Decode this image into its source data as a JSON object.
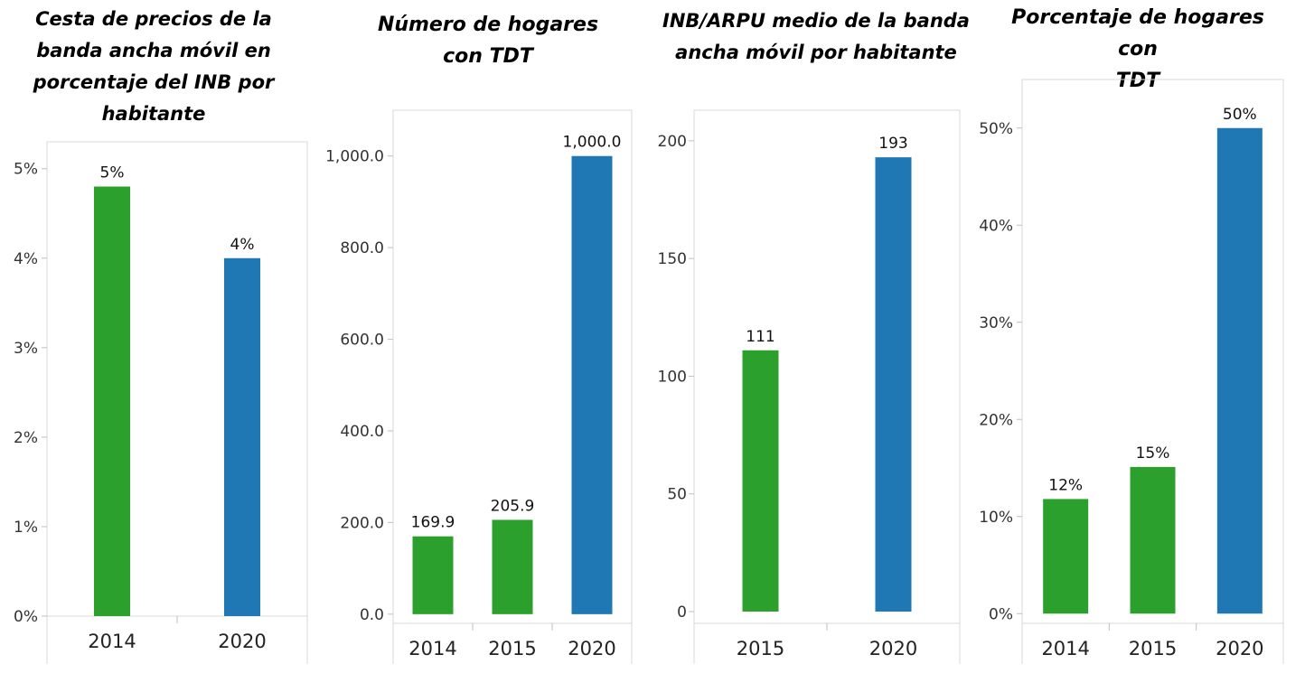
{
  "colors": {
    "green": "#2ca02c",
    "blue": "#1f77b4",
    "frame": "#d9d9d9",
    "tick": "#bfbfbf"
  },
  "chart_data": [
    {
      "type": "bar",
      "title": "Cesta de precios de la banda ancha móvil en porcentaje del INB por habitante",
      "title_lines": [
        "Cesta de precios de la",
        "banda ancha móvil en",
        "porcentaje del INB por",
        "habitante"
      ],
      "categories": [
        "2014",
        "2020"
      ],
      "values": [
        4.8,
        4.0
      ],
      "data_labels": [
        "5%",
        "4%"
      ],
      "bar_colors": [
        "green",
        "blue"
      ],
      "ylim": [
        0,
        5.3
      ],
      "yticks": [
        0,
        1,
        2,
        3,
        4,
        5
      ],
      "ytick_labels": [
        "0%",
        "1%",
        "2%",
        "3%",
        "4%",
        "5%"
      ],
      "grid": false,
      "xlabel": "",
      "ylabel": ""
    },
    {
      "type": "bar",
      "title": "Número de hogares con TDT",
      "title_lines": [
        "Número de hogares",
        "con TDT"
      ],
      "categories": [
        "2014",
        "2015",
        "2020"
      ],
      "values": [
        169.9,
        205.9,
        1000.0
      ],
      "data_labels": [
        "169.9",
        "205.9",
        "1,000.0"
      ],
      "bar_colors": [
        "green",
        "green",
        "blue"
      ],
      "ylim": [
        -20,
        1100
      ],
      "yticks": [
        0,
        200,
        400,
        600,
        800,
        1000
      ],
      "ytick_labels": [
        "0.0",
        "200.0",
        "400.0",
        "600.0",
        "800.0",
        "1,000.0"
      ],
      "grid": false,
      "xlabel": "",
      "ylabel": ""
    },
    {
      "type": "bar",
      "title": "INB/ARPU medio de la banda ancha móvil por habitante",
      "title_lines": [
        "INB/ARPU medio de la banda",
        "ancha móvil por habitante"
      ],
      "categories": [
        "2015",
        "2020"
      ],
      "values": [
        111,
        193
      ],
      "data_labels": [
        "111",
        "193"
      ],
      "bar_colors": [
        "green",
        "blue"
      ],
      "ylim": [
        -5,
        213
      ],
      "yticks": [
        0,
        50,
        100,
        150,
        200
      ],
      "ytick_labels": [
        "0",
        "50",
        "100",
        "150",
        "200"
      ],
      "grid": false,
      "xlabel": "",
      "ylabel": ""
    },
    {
      "type": "bar",
      "title": "Porcentaje de hogares con TDT",
      "title_lines": [
        "Porcentaje de hogares con",
        "TDT"
      ],
      "categories": [
        "2014",
        "2015",
        "2020"
      ],
      "values": [
        11.8,
        15.1,
        50.0
      ],
      "data_labels": [
        "12%",
        "15%",
        "50%"
      ],
      "bar_colors": [
        "green",
        "green",
        "blue"
      ],
      "ylim": [
        -1,
        55
      ],
      "yticks": [
        0,
        10,
        20,
        30,
        40,
        50
      ],
      "ytick_labels": [
        "0%",
        "10%",
        "20%",
        "30%",
        "40%",
        "50%"
      ],
      "grid": false,
      "xlabel": "",
      "ylabel": ""
    }
  ]
}
